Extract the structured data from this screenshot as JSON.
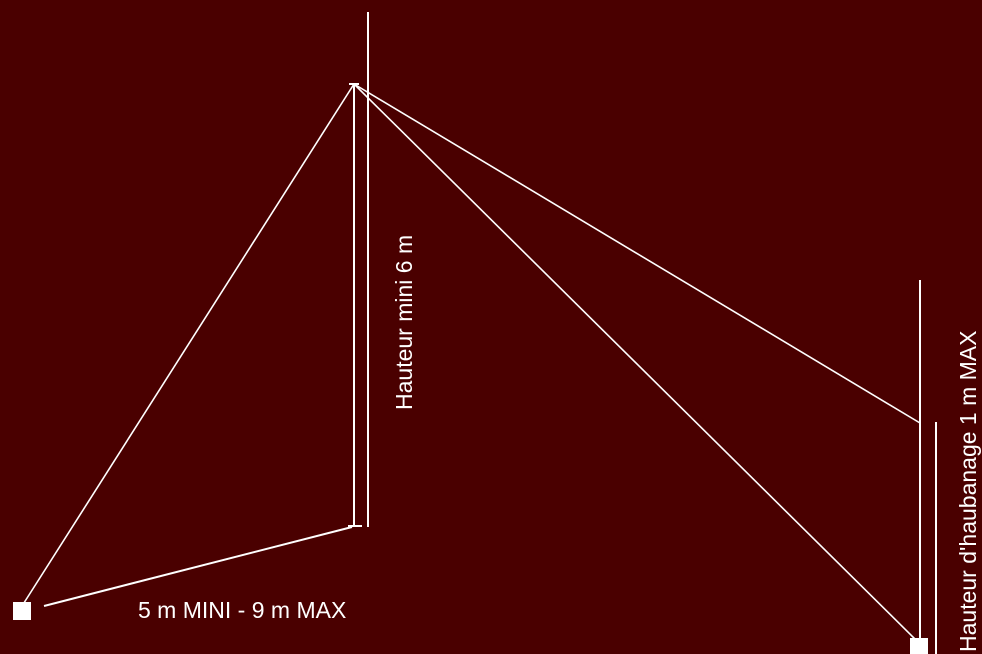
{
  "labels": {
    "mast_height": "Hauteur mini 6 m",
    "guy_height": "Hauteur d'haubanage 1 m MAX",
    "base_distance": "5 m MINI - 9 m MAX"
  },
  "colors": {
    "background": "#4a0000",
    "line": "#ffffff"
  }
}
